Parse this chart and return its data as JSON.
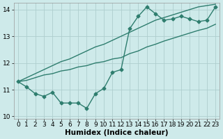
{
  "x_vals": [
    0,
    1,
    2,
    3,
    4,
    5,
    6,
    7,
    8,
    9,
    10,
    11,
    12,
    13,
    14,
    15,
    16,
    17,
    18,
    19,
    20,
    21,
    22,
    23
  ],
  "line_markers": [
    11.3,
    11.1,
    10.85,
    10.75,
    10.9,
    10.5,
    10.5,
    10.5,
    10.3,
    10.85,
    11.05,
    11.65,
    11.75,
    13.28,
    13.75,
    14.1,
    13.85,
    13.6,
    13.65,
    13.75,
    13.65,
    13.55,
    13.6,
    14.1
  ],
  "line_upper": [
    11.3,
    11.45,
    11.6,
    11.75,
    11.9,
    12.05,
    12.15,
    12.3,
    12.45,
    12.6,
    12.7,
    12.85,
    13.0,
    13.15,
    13.3,
    13.45,
    13.6,
    13.7,
    13.8,
    13.9,
    14.0,
    14.1,
    14.15,
    14.2
  ],
  "line_lower": [
    11.3,
    11.35,
    11.45,
    11.55,
    11.6,
    11.7,
    11.75,
    11.85,
    11.9,
    12.0,
    12.05,
    12.15,
    12.2,
    12.35,
    12.45,
    12.6,
    12.7,
    12.82,
    12.92,
    13.02,
    13.12,
    13.22,
    13.3,
    13.45
  ],
  "color": "#2e7d6e",
  "bg_color": "#ceeaea",
  "grid_color": "#aecece",
  "xlabel": "Humidex (Indice chaleur)",
  "ylim": [
    9.9,
    14.25
  ],
  "xlim": [
    -0.5,
    23.5
  ],
  "yticks": [
    10,
    11,
    12,
    13,
    14
  ],
  "xticks": [
    0,
    1,
    2,
    3,
    4,
    5,
    6,
    7,
    8,
    9,
    10,
    11,
    12,
    13,
    14,
    15,
    16,
    17,
    18,
    19,
    20,
    21,
    22,
    23
  ],
  "fontsize_xlabel": 7.5,
  "fontsize_ticks": 6.5,
  "linewidth": 1.0,
  "markersize": 2.5
}
